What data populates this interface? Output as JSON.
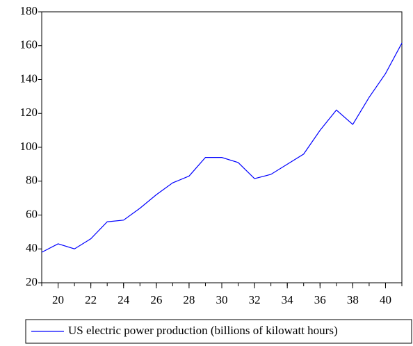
{
  "chart_data": {
    "type": "line",
    "x": [
      19,
      20,
      21,
      22,
      23,
      24,
      25,
      26,
      27,
      28,
      29,
      30,
      31,
      32,
      33,
      34,
      35,
      36,
      37,
      38,
      39,
      40,
      41
    ],
    "series": [
      {
        "name": "US electric power production (billions of kilowatt hours)",
        "color": "#0000ff",
        "values": [
          38,
          43,
          40,
          46,
          56,
          57,
          64,
          72,
          79,
          83,
          94,
          94,
          91,
          81.5,
          84,
          90,
          96,
          110,
          122,
          113.5,
          129.5,
          143.5,
          161.5
        ]
      }
    ],
    "xlim": [
      19,
      41
    ],
    "xticks": [
      20,
      22,
      24,
      26,
      28,
      30,
      32,
      34,
      36,
      38,
      40
    ],
    "ylim": [
      20,
      180
    ],
    "yticks": [
      20,
      40,
      60,
      80,
      100,
      120,
      140,
      160,
      180
    ],
    "grid": false,
    "legend": "bottom"
  }
}
